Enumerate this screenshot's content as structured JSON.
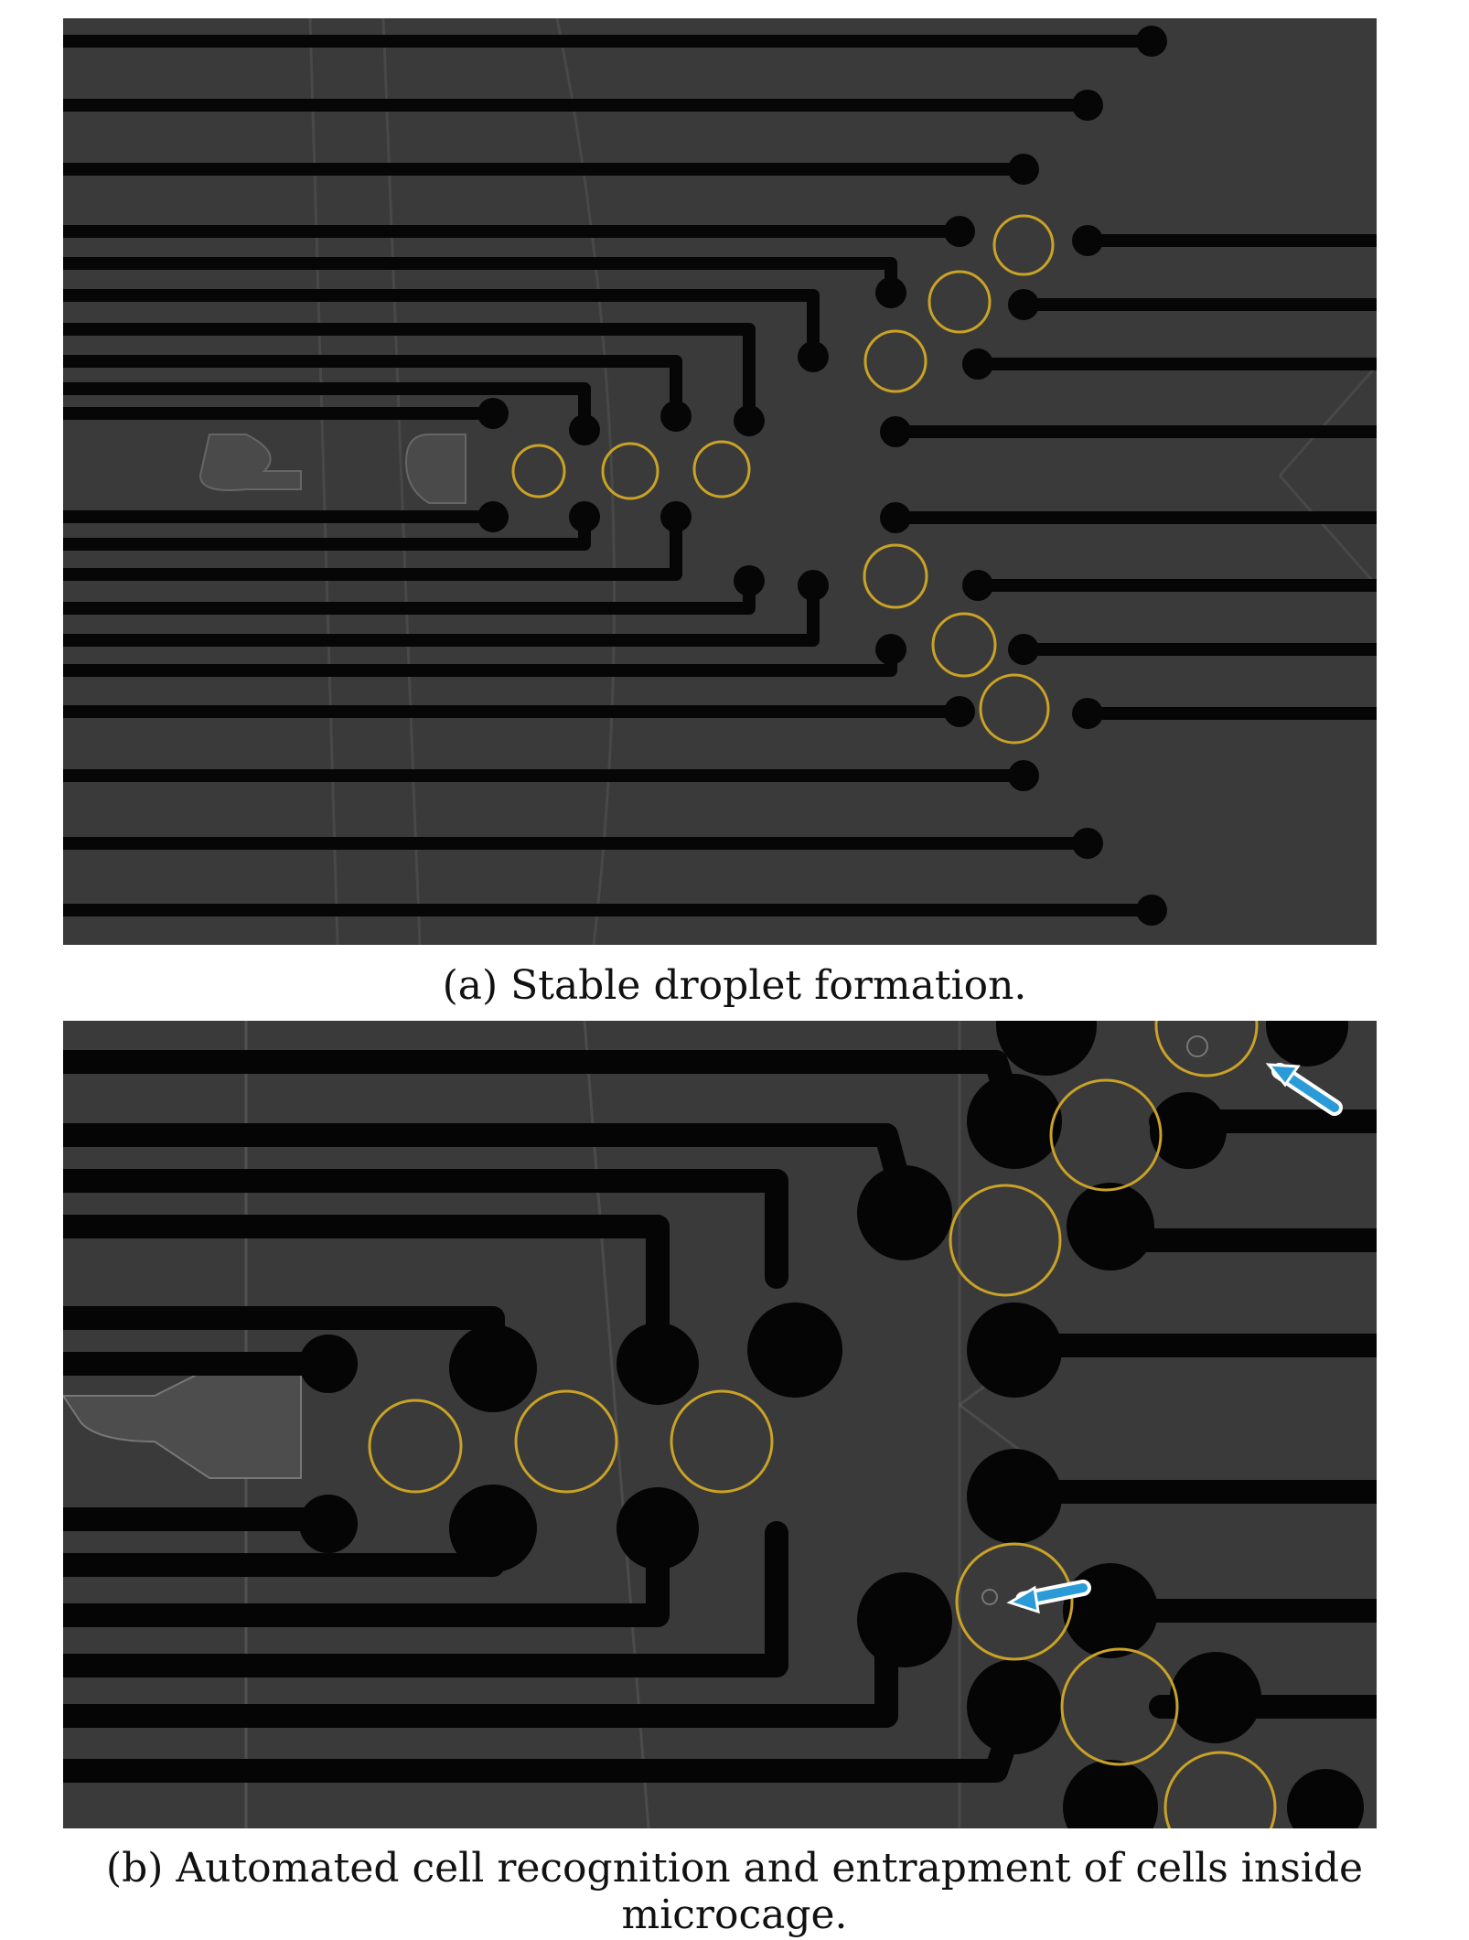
{
  "figure": {
    "panel_a": {
      "caption": "(a) Stable droplet formation."
    },
    "panel_b": {
      "caption": "(b) Automated cell recognition and entrapment of cells inside microcage."
    }
  },
  "colors": {
    "background": "#3b3b3b",
    "electrode": "#050505",
    "droplet_outline": "#c9a227",
    "arrow": "#2b9bd8"
  },
  "icons": [
    "arrow-icon"
  ]
}
